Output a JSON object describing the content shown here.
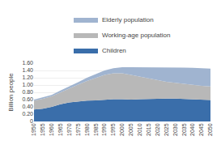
{
  "chart_data": {
    "type": "area",
    "stacked": true,
    "ylabel": "Billion people",
    "x": [
      1950,
      1955,
      1960,
      1965,
      1970,
      1975,
      1980,
      1985,
      1990,
      1995,
      2000,
      2005,
      2010,
      2015,
      2020,
      2025,
      2030,
      2035,
      2040,
      2045,
      2050
    ],
    "series": [
      {
        "name": "Children",
        "color": "#3a6eaa",
        "values": [
          0.33,
          0.35,
          0.4,
          0.47,
          0.52,
          0.55,
          0.57,
          0.58,
          0.6,
          0.61,
          0.61,
          0.6,
          0.61,
          0.62,
          0.63,
          0.63,
          0.63,
          0.62,
          0.61,
          0.6,
          0.59
        ]
      },
      {
        "name": "Working-age population",
        "color": "#b8b8b8",
        "values": [
          0.24,
          0.27,
          0.29,
          0.33,
          0.38,
          0.46,
          0.54,
          0.62,
          0.68,
          0.71,
          0.71,
          0.68,
          0.62,
          0.56,
          0.5,
          0.46,
          0.43,
          0.41,
          0.39,
          0.38,
          0.37
        ]
      },
      {
        "name": "Elderly population",
        "color": "#a0b4d0",
        "values": [
          0.03,
          0.04,
          0.04,
          0.05,
          0.06,
          0.07,
          0.09,
          0.1,
          0.12,
          0.14,
          0.17,
          0.21,
          0.26,
          0.31,
          0.36,
          0.4,
          0.43,
          0.45,
          0.47,
          0.48,
          0.49
        ]
      }
    ],
    "xlim": [
      1950,
      2050
    ],
    "xticks": [
      1950,
      1955,
      1960,
      1965,
      1970,
      1975,
      1980,
      1985,
      1990,
      1995,
      2000,
      2005,
      2010,
      2015,
      2020,
      2025,
      2030,
      2035,
      2040,
      2045,
      2050
    ],
    "ylim": [
      0,
      1.6
    ],
    "yticks": [
      0,
      {
        "value": 0.2,
        "label": "0.20"
      },
      {
        "value": 0.4,
        "label": "0.40"
      },
      {
        "value": 0.6,
        "label": "0.60"
      },
      {
        "value": 0.8,
        "label": "0.80"
      },
      {
        "value": 1.0,
        "label": "1.00"
      },
      {
        "value": 1.2,
        "label": "1.20"
      },
      {
        "value": 1.4,
        "label": "1.40"
      },
      {
        "value": 1.6,
        "label": "1.60"
      }
    ],
    "grid": true,
    "legend": "upper center"
  }
}
